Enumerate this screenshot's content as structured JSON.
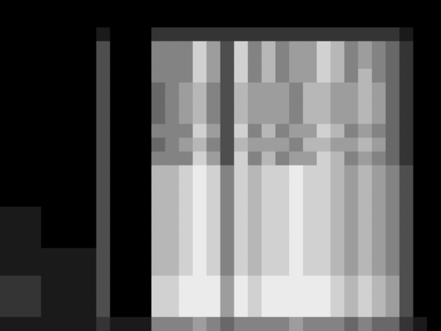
{
  "chart_data": {
    "type": "heatmap",
    "tick_labels": false,
    "grid": false,
    "legend": false,
    "cells": [
      [
        0,
        0,
        0,
        0,
        0,
        0,
        0,
        0,
        0,
        0,
        0,
        0,
        0,
        0,
        0,
        0,
        0,
        0,
        0,
        0,
        0,
        0,
        0,
        0,
        0,
        0,
        0,
        0,
        0,
        0,
        0,
        0
      ],
      [
        0,
        0,
        0,
        0,
        0,
        0,
        0,
        0,
        0,
        0,
        0,
        0,
        0,
        0,
        0,
        0,
        0,
        0,
        0,
        0,
        0,
        0,
        0,
        0,
        0,
        0,
        0,
        0,
        0,
        0,
        0,
        0
      ],
      [
        0,
        0,
        0,
        0,
        0,
        0,
        0,
        1,
        0,
        0,
        0,
        2,
        2,
        2,
        2,
        2,
        2,
        2,
        2,
        2,
        2,
        2,
        2,
        2,
        2,
        2,
        2,
        2,
        2,
        1,
        0,
        0
      ],
      [
        0,
        0,
        0,
        0,
        0,
        0,
        0,
        3,
        0,
        0,
        0,
        5,
        5,
        5,
        8,
        6,
        3,
        8,
        5,
        7,
        5,
        6,
        6,
        8,
        7,
        5,
        6,
        5,
        4,
        2,
        0,
        0
      ],
      [
        0,
        0,
        0,
        0,
        0,
        0,
        0,
        3,
        0,
        0,
        0,
        5,
        5,
        5,
        8,
        6,
        3,
        8,
        5,
        7,
        5,
        6,
        6,
        8,
        7,
        5,
        6,
        5,
        4,
        2,
        0,
        0
      ],
      [
        0,
        0,
        0,
        0,
        0,
        0,
        0,
        3,
        0,
        0,
        0,
        5,
        5,
        5,
        8,
        6,
        3,
        8,
        5,
        7,
        5,
        6,
        6,
        8,
        7,
        5,
        7,
        5,
        4,
        2,
        0,
        0
      ],
      [
        0,
        0,
        0,
        0,
        0,
        0,
        0,
        3,
        0,
        0,
        0,
        4,
        5,
        6,
        7,
        5,
        3,
        7,
        6,
        6,
        6,
        5,
        7,
        7,
        6,
        6,
        7,
        6,
        4,
        2,
        0,
        0
      ],
      [
        0,
        0,
        0,
        0,
        0,
        0,
        0,
        3,
        0,
        0,
        0,
        4,
        5,
        6,
        7,
        5,
        3,
        7,
        6,
        6,
        6,
        5,
        7,
        7,
        6,
        6,
        7,
        6,
        4,
        2,
        0,
        0
      ],
      [
        0,
        0,
        0,
        0,
        0,
        0,
        0,
        3,
        0,
        0,
        0,
        4,
        5,
        6,
        7,
        5,
        3,
        7,
        6,
        6,
        6,
        5,
        7,
        7,
        6,
        6,
        7,
        6,
        4,
        2,
        0,
        0
      ],
      [
        0,
        0,
        0,
        0,
        0,
        0,
        0,
        3,
        0,
        0,
        0,
        5,
        5,
        5,
        8,
        6,
        3,
        8,
        5,
        7,
        5,
        6,
        6,
        8,
        7,
        5,
        6,
        5,
        4,
        2,
        0,
        0
      ],
      [
        0,
        0,
        0,
        0,
        0,
        0,
        0,
        3,
        0,
        0,
        0,
        4,
        5,
        6,
        7,
        5,
        3,
        7,
        6,
        6,
        6,
        5,
        7,
        7,
        6,
        6,
        7,
        6,
        4,
        2,
        0,
        0
      ],
      [
        0,
        0,
        0,
        0,
        0,
        0,
        0,
        3,
        0,
        0,
        0,
        5,
        5,
        5,
        8,
        6,
        3,
        8,
        5,
        7,
        5,
        6,
        6,
        8,
        7,
        5,
        6,
        5,
        4,
        2,
        0,
        0
      ],
      [
        0,
        0,
        0,
        0,
        0,
        0,
        0,
        3,
        0,
        0,
        0,
        7,
        7,
        8,
        9,
        8,
        5,
        8,
        7,
        8,
        8,
        9,
        8,
        8,
        7,
        6,
        7,
        6,
        5,
        3,
        0,
        0
      ],
      [
        0,
        0,
        0,
        0,
        0,
        0,
        0,
        3,
        0,
        0,
        0,
        7,
        7,
        8,
        9,
        8,
        5,
        8,
        7,
        8,
        8,
        9,
        8,
        8,
        7,
        6,
        7,
        6,
        5,
        3,
        0,
        0
      ],
      [
        0,
        0,
        0,
        0,
        0,
        0,
        0,
        3,
        0,
        0,
        0,
        7,
        7,
        8,
        9,
        8,
        5,
        8,
        7,
        8,
        8,
        9,
        8,
        8,
        7,
        6,
        7,
        6,
        5,
        3,
        0,
        0
      ],
      [
        1,
        1,
        1,
        0,
        0,
        0,
        0,
        3,
        0,
        0,
        0,
        7,
        7,
        8,
        9,
        8,
        5,
        8,
        7,
        8,
        8,
        9,
        8,
        8,
        7,
        6,
        7,
        6,
        5,
        3,
        0,
        0
      ],
      [
        1,
        1,
        1,
        0,
        0,
        0,
        0,
        3,
        0,
        0,
        0,
        7,
        7,
        8,
        9,
        8,
        5,
        8,
        7,
        8,
        8,
        9,
        8,
        8,
        7,
        6,
        7,
        6,
        5,
        3,
        0,
        0
      ],
      [
        1,
        1,
        1,
        0,
        0,
        0,
        0,
        3,
        0,
        0,
        0,
        7,
        7,
        8,
        9,
        8,
        5,
        8,
        7,
        8,
        8,
        9,
        8,
        8,
        7,
        6,
        7,
        6,
        5,
        3,
        0,
        0
      ],
      [
        1,
        1,
        1,
        1,
        1,
        1,
        1,
        3,
        0,
        0,
        0,
        7,
        7,
        8,
        9,
        8,
        5,
        8,
        7,
        8,
        8,
        9,
        8,
        8,
        7,
        6,
        7,
        6,
        5,
        3,
        0,
        0
      ],
      [
        1,
        1,
        1,
        1,
        1,
        1,
        1,
        3,
        0,
        0,
        0,
        7,
        7,
        8,
        9,
        8,
        5,
        8,
        7,
        8,
        8,
        9,
        8,
        8,
        7,
        6,
        7,
        6,
        5,
        3,
        0,
        0
      ],
      [
        2,
        2,
        2,
        1,
        1,
        1,
        1,
        3,
        0,
        0,
        0,
        8,
        8,
        9,
        9,
        9,
        6,
        9,
        8,
        9,
        9,
        9,
        9,
        9,
        8,
        7,
        8,
        7,
        6,
        3,
        0,
        0
      ],
      [
        2,
        2,
        2,
        1,
        1,
        1,
        1,
        3,
        0,
        0,
        0,
        8,
        8,
        9,
        9,
        9,
        6,
        9,
        8,
        9,
        9,
        9,
        9,
        9,
        8,
        7,
        8,
        7,
        6,
        3,
        0,
        0
      ],
      [
        2,
        2,
        2,
        1,
        1,
        1,
        1,
        3,
        0,
        0,
        0,
        8,
        8,
        9,
        9,
        9,
        6,
        9,
        8,
        9,
        9,
        9,
        9,
        9,
        8,
        7,
        8,
        7,
        6,
        3,
        0,
        0
      ],
      [
        1,
        1,
        1,
        1,
        1,
        1,
        1,
        2,
        1,
        1,
        1,
        5,
        5,
        5,
        6,
        5,
        4,
        5,
        5,
        5,
        5,
        6,
        5,
        5,
        5,
        4,
        5,
        4,
        4,
        2,
        1,
        0
      ]
    ]
  }
}
